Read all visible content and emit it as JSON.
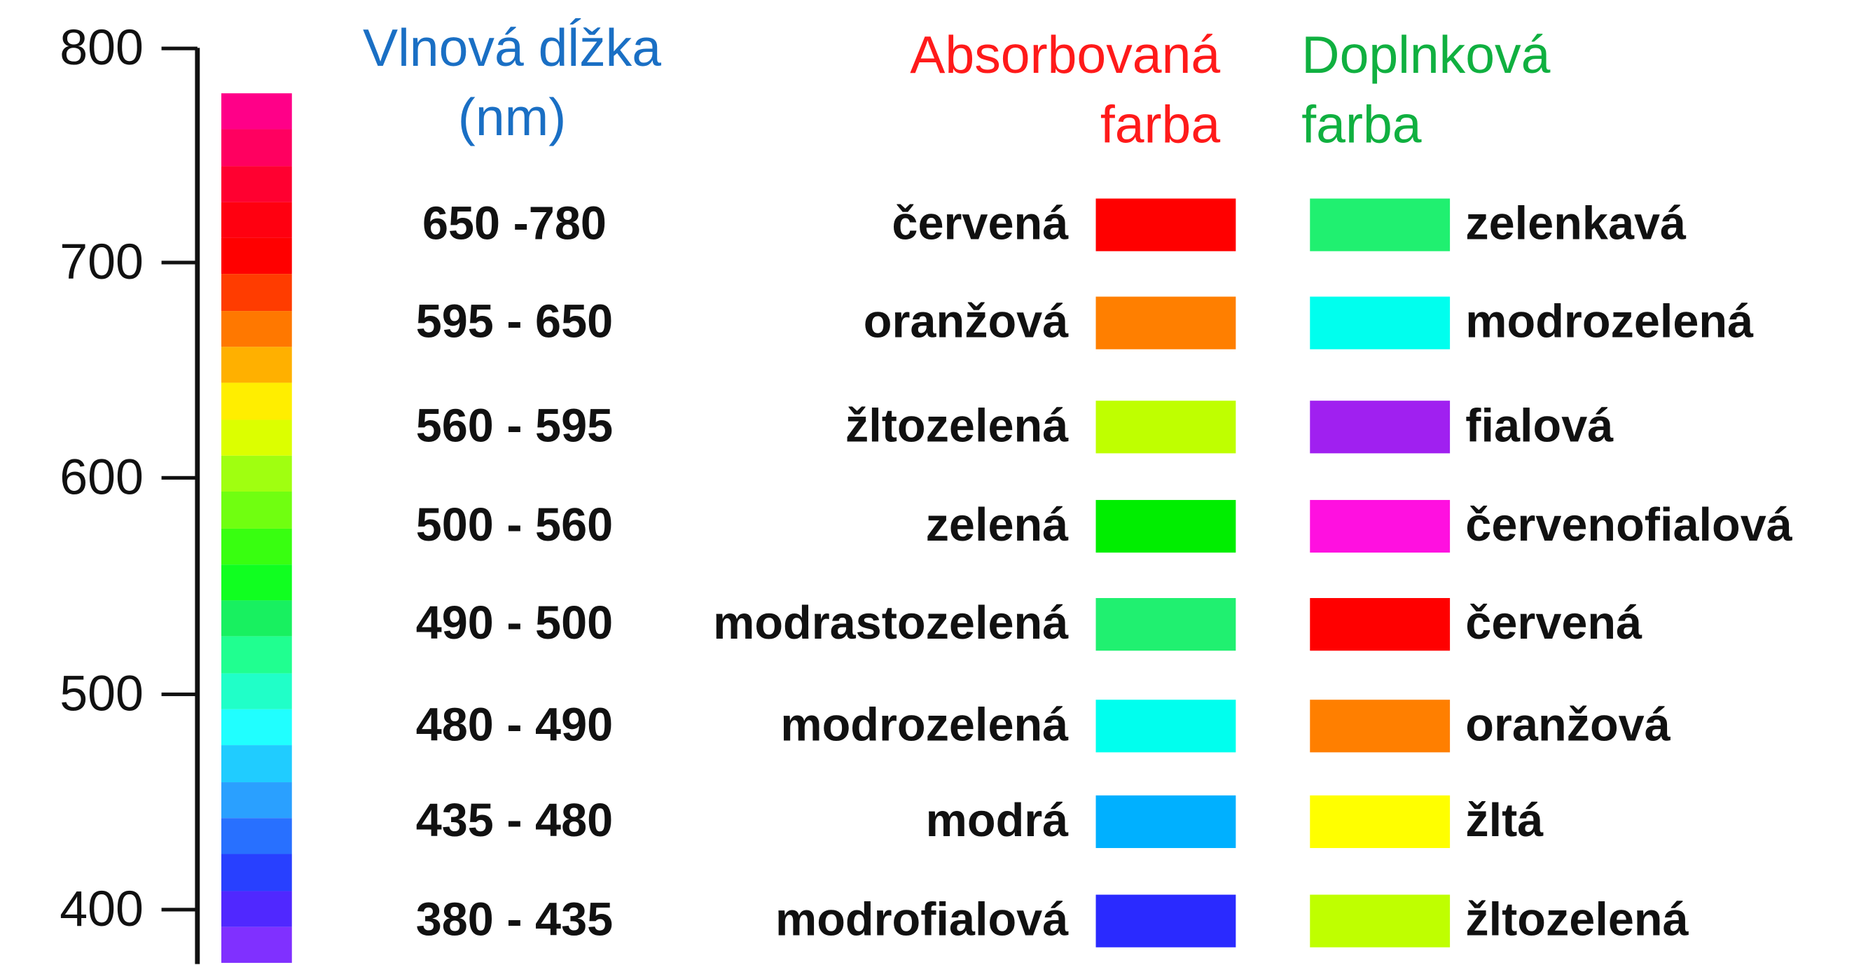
{
  "axis": {
    "ticks": [
      "800",
      "700",
      "600",
      "500",
      "400"
    ]
  },
  "headers": {
    "wavelength": [
      "Vlnová dĺžka",
      "(nm)"
    ],
    "absorbed": [
      "Absorbovaná",
      "farba"
    ],
    "complementary": [
      "Doplnková",
      "farba"
    ],
    "colors": {
      "wavelength": "#1a6fc4",
      "absorbed": "#ff1a1a",
      "complementary": "#10b040"
    }
  },
  "spectrum_bar": {
    "range_nm": [
      380,
      780
    ],
    "bands": [
      "#ff0088",
      "#ff0060",
      "#ff0030",
      "#ff0010",
      "#ff0000",
      "#ff3c00",
      "#ff7800",
      "#ffb000",
      "#ffee00",
      "#dcff00",
      "#a0ff10",
      "#70ff10",
      "#38ff10",
      "#10ff20",
      "#18f060",
      "#20ff90",
      "#20ffc8",
      "#20ffff",
      "#20ccff",
      "#2aa0ff",
      "#2870ff",
      "#2840ff",
      "#5028ff",
      "#8030ff"
    ]
  },
  "rows": [
    {
      "range": "650 -780",
      "absorbed": "červená",
      "absorbed_color": "#ff0000",
      "complementary": "zelenkavá",
      "complementary_color": "#20f070"
    },
    {
      "range": "595 - 650",
      "absorbed": "oranžová",
      "absorbed_color": "#ff7f00",
      "complementary": "modrozelená",
      "complementary_color": "#00ffee"
    },
    {
      "range": "560 - 595",
      "absorbed": "žltozelená",
      "absorbed_color": "#bfff00",
      "complementary": "fialová",
      "complementary_color": "#a020f0"
    },
    {
      "range": "500 - 560",
      "absorbed": "zelená",
      "absorbed_color": "#00ee00",
      "complementary": "červenofialová",
      "complementary_color": "#ff10e0"
    },
    {
      "range": "490 - 500",
      "absorbed": "modrastozelená",
      "absorbed_color": "#20f070",
      "complementary": "červená",
      "complementary_color": "#ff0000"
    },
    {
      "range": "480 - 490",
      "absorbed": "modrozelená",
      "absorbed_color": "#00ffee",
      "complementary": "oranžová",
      "complementary_color": "#ff7f00"
    },
    {
      "range": "435 - 480",
      "absorbed": "modrá",
      "absorbed_color": "#00b0ff",
      "complementary": "žltá",
      "complementary_color": "#ffff00"
    },
    {
      "range": "380 - 435",
      "absorbed": "modrofialová",
      "absorbed_color": "#2a2aff",
      "complementary": "žltozelená",
      "complementary_color": "#bfff00"
    }
  ]
}
